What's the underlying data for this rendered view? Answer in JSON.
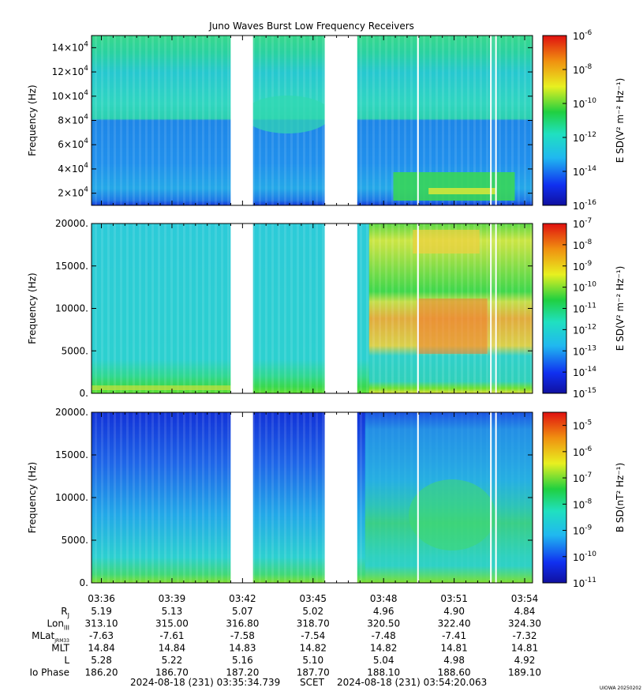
{
  "title": "Juno Waves Burst Low Frequency Receivers",
  "colors": {
    "background_cyan": "#20c8e0",
    "blue_band": "#1a7ee8",
    "deep_blue": "#1838e0",
    "green": "#2ad24a",
    "yellow": "#e8e830",
    "orange": "#f0a020",
    "red": "#e02020",
    "gap_white": "#ffffff"
  },
  "chart_data": [
    {
      "type": "heatmap",
      "panel": "top",
      "ylabel": "Frequency (Hz)",
      "yticks": [
        {
          "value": 20000,
          "mant": "2×10",
          "exp": "4"
        },
        {
          "value": 40000,
          "mant": "4×10",
          "exp": "4"
        },
        {
          "value": 60000,
          "mant": "6×10",
          "exp": "4"
        },
        {
          "value": 80000,
          "mant": "8×10",
          "exp": "4"
        },
        {
          "value": 100000,
          "mant": "10×10",
          "exp": "4"
        },
        {
          "value": 120000,
          "mant": "12×10",
          "exp": "4"
        },
        {
          "value": 140000,
          "mant": "14×10",
          "exp": "4"
        }
      ],
      "ylim": [
        10000,
        150000
      ],
      "colorbar": {
        "label": "E SD(V² m⁻² Hz⁻¹)",
        "scale": "log",
        "ticks": [
          {
            "mant": "10",
            "exp": "-6"
          },
          {
            "mant": "10",
            "exp": "-8"
          },
          {
            "mant": "10",
            "exp": "-10"
          },
          {
            "mant": "10",
            "exp": "-12"
          },
          {
            "mant": "10",
            "exp": "-14"
          },
          {
            "mant": "10",
            "exp": "-16"
          }
        ],
        "range_exp": [
          -16,
          -6
        ]
      }
    },
    {
      "type": "heatmap",
      "panel": "middle",
      "ylabel": "Frequency (Hz)",
      "yticks": [
        {
          "value": 0,
          "label": "0."
        },
        {
          "value": 5000,
          "label": "5000."
        },
        {
          "value": 10000,
          "label": "10000."
        },
        {
          "value": 15000,
          "label": "15000."
        },
        {
          "value": 20000,
          "label": "20000."
        }
      ],
      "ylim": [
        0,
        20000
      ],
      "colorbar": {
        "label": "E SD(V² m⁻² Hz⁻¹)",
        "scale": "log",
        "ticks": [
          {
            "mant": "10",
            "exp": "-7"
          },
          {
            "mant": "10",
            "exp": "-8"
          },
          {
            "mant": "10",
            "exp": "-9"
          },
          {
            "mant": "10",
            "exp": "-10"
          },
          {
            "mant": "10",
            "exp": "-11"
          },
          {
            "mant": "10",
            "exp": "-12"
          },
          {
            "mant": "10",
            "exp": "-13"
          },
          {
            "mant": "10",
            "exp": "-14"
          },
          {
            "mant": "10",
            "exp": "-15"
          }
        ],
        "range_exp": [
          -15,
          -7
        ]
      }
    },
    {
      "type": "heatmap",
      "panel": "bottom",
      "ylabel": "Frequency (Hz)",
      "yticks": [
        {
          "value": 0,
          "label": "0."
        },
        {
          "value": 5000,
          "label": "5000."
        },
        {
          "value": 10000,
          "label": "10000."
        },
        {
          "value": 15000,
          "label": "15000."
        },
        {
          "value": 20000,
          "label": "20000."
        }
      ],
      "ylim": [
        0,
        20000
      ],
      "colorbar": {
        "label": "B SD(nT² Hz⁻¹)",
        "scale": "log",
        "ticks": [
          {
            "mant": "10",
            "exp": "-5"
          },
          {
            "mant": "10",
            "exp": "-6"
          },
          {
            "mant": "10",
            "exp": "-7"
          },
          {
            "mant": "10",
            "exp": "-8"
          },
          {
            "mant": "10",
            "exp": "-9"
          },
          {
            "mant": "10",
            "exp": "-10"
          },
          {
            "mant": "10",
            "exp": "-11"
          }
        ],
        "range_exp": [
          -11,
          -4.5
        ]
      }
    }
  ],
  "time_axis": {
    "start_seconds": 0,
    "end_seconds": 1125.324,
    "tick_labels": [
      "03:36",
      "03:39",
      "03:42",
      "03:45",
      "03:48",
      "03:51",
      "03:54"
    ],
    "tick_seconds": [
      25.261,
      205.261,
      385.261,
      565.261,
      745.261,
      925.261,
      1105.261
    ],
    "data_gaps_seconds": [
      [
        355,
        412
      ],
      [
        595,
        678
      ]
    ],
    "white_lines_seconds": [
      831,
      1017,
      1030
    ]
  },
  "ephemeris": {
    "rows": [
      {
        "label": "R",
        "sub": "J",
        "values": [
          "5.19",
          "5.13",
          "5.07",
          "5.02",
          "4.96",
          "4.90",
          "4.84"
        ]
      },
      {
        "label": "Lon",
        "sub": "III",
        "values": [
          "313.10",
          "315.00",
          "316.80",
          "318.70",
          "320.50",
          "322.40",
          "324.30"
        ]
      },
      {
        "label": "MLat",
        "sub": "JRM33",
        "values": [
          "-7.63",
          "-7.61",
          "-7.58",
          "-7.54",
          "-7.48",
          "-7.41",
          "-7.32"
        ]
      },
      {
        "label": "MLT",
        "sub": "",
        "values": [
          "14.84",
          "14.84",
          "14.83",
          "14.82",
          "14.82",
          "14.81",
          "14.81"
        ]
      },
      {
        "label": "L",
        "sub": "",
        "values": [
          "5.28",
          "5.22",
          "5.16",
          "5.10",
          "5.04",
          "4.98",
          "4.92"
        ]
      },
      {
        "label": "Io Phase",
        "sub": "",
        "values": [
          "186.20",
          "186.70",
          "187.20",
          "187.70",
          "188.10",
          "188.60",
          "189.10"
        ]
      }
    ]
  },
  "footer": {
    "start": "2024-08-18 (231) 03:35:34.739",
    "scet": "SCET",
    "end": "2024-08-18 (231) 03:54:20.063",
    "stamp": "UIOWA 20250202"
  }
}
